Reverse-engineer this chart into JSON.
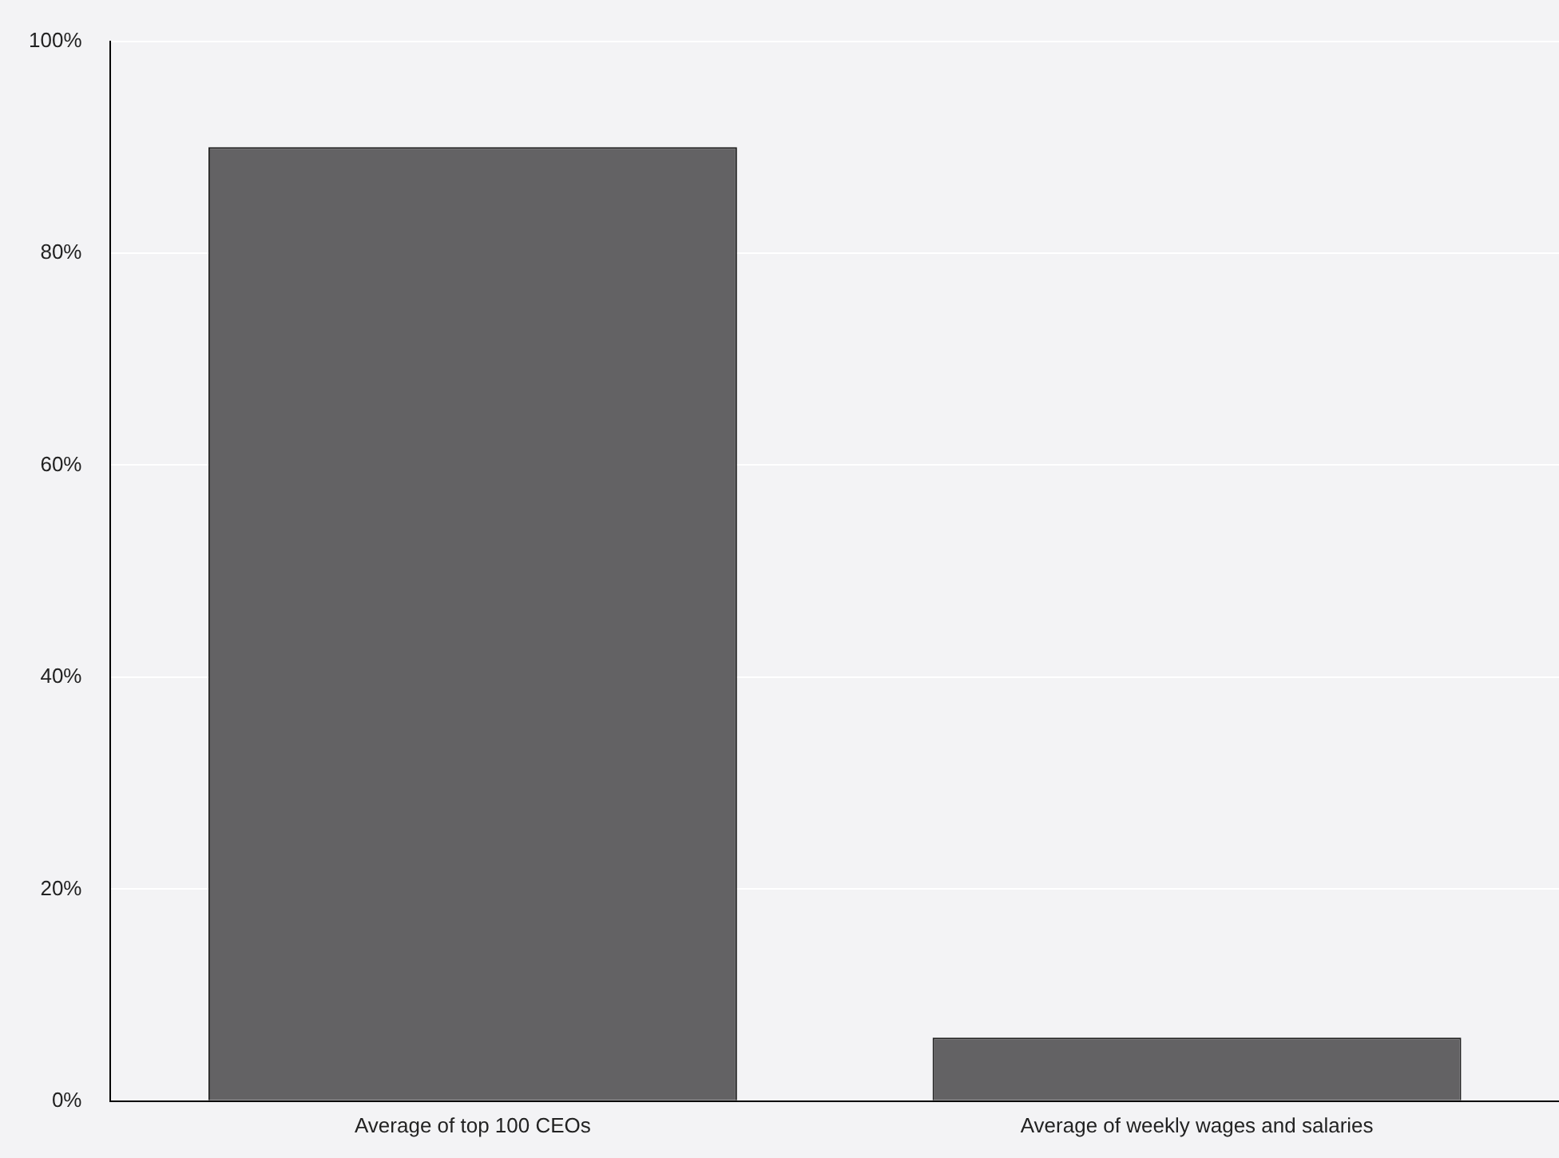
{
  "chart_data": {
    "type": "bar",
    "categories": [
      "Average of top 100 CEOs",
      "Average of weekly wages and salaries"
    ],
    "values": [
      90,
      6
    ],
    "color": "#636264",
    "ylim": [
      0,
      100
    ],
    "yticks": [
      {
        "value": 0,
        "label": "0%"
      },
      {
        "value": 20,
        "label": "20%"
      },
      {
        "value": 40,
        "label": "40%"
      },
      {
        "value": 60,
        "label": "60%"
      },
      {
        "value": 80,
        "label": "80%"
      },
      {
        "value": 100,
        "label": "100%"
      }
    ],
    "grid": "y"
  }
}
